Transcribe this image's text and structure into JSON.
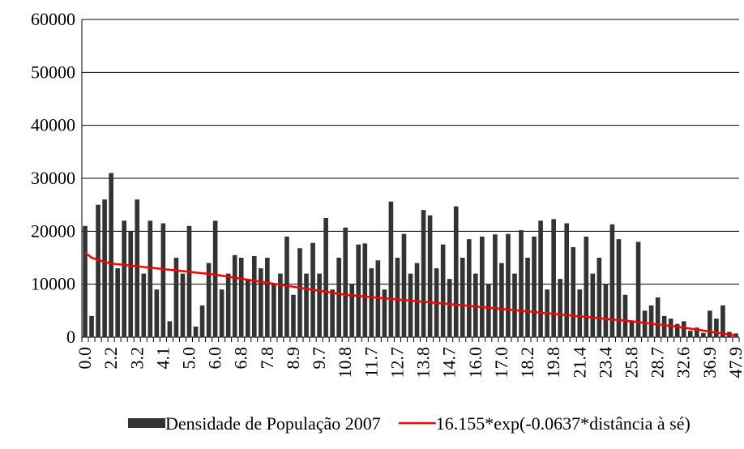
{
  "chart_data": {
    "type": "bar",
    "categories": [
      "0.0",
      null,
      null,
      null,
      "2.2",
      null,
      null,
      null,
      "3.2",
      null,
      null,
      null,
      "4.1",
      null,
      null,
      null,
      "5.0",
      null,
      null,
      null,
      "6.0",
      null,
      null,
      null,
      "6.8",
      null,
      null,
      null,
      "7.8",
      null,
      null,
      null,
      "8.9",
      null,
      null,
      null,
      "9.7",
      null,
      null,
      null,
      "10.8",
      null,
      null,
      null,
      "11.7",
      null,
      null,
      null,
      "12.7",
      null,
      null,
      null,
      "13.8",
      null,
      null,
      null,
      "14.7",
      null,
      null,
      null,
      "16.0",
      null,
      null,
      null,
      "17.0",
      null,
      null,
      null,
      "18.2",
      null,
      null,
      null,
      "19.8",
      null,
      null,
      null,
      "21.4",
      null,
      null,
      null,
      "23.4",
      null,
      null,
      null,
      "25.8",
      null,
      null,
      null,
      "28.7",
      null,
      null,
      null,
      "32.6",
      null,
      null,
      null,
      "36.9",
      null,
      null,
      null,
      "47.9"
    ],
    "series": [
      {
        "name": "Densidade de População 2007",
        "type": "bar",
        "color": "#333333",
        "values": [
          21000,
          4000,
          25000,
          26000,
          31000,
          13000,
          22000,
          20000,
          26000,
          12000,
          22000,
          9000,
          21500,
          3000,
          15000,
          12000,
          21000,
          2000,
          6000,
          14000,
          22000,
          9000,
          12000,
          15500,
          15000,
          11000,
          15300,
          13000,
          15000,
          10000,
          12000,
          19000,
          8000,
          16800,
          12000,
          17800,
          12000,
          22500,
          9000,
          15000,
          20700,
          10000,
          17500,
          17700,
          13000,
          14500,
          9000,
          25600,
          15000,
          19500,
          12000,
          14000,
          24000,
          23000,
          13000,
          17500,
          11000,
          24700,
          15000,
          18500,
          12000,
          19000,
          10000,
          19400,
          14000,
          19500,
          12000,
          20200,
          15000,
          19000,
          22000,
          9000,
          22300,
          11000,
          21500,
          17000,
          9000,
          19000,
          12000,
          15000,
          10000,
          21300,
          18500,
          8000,
          3000,
          18000,
          5000,
          6000,
          7500,
          4000,
          3500,
          2500,
          3000,
          1200,
          1800,
          800,
          5000,
          3500,
          6000,
          1000,
          700
        ]
      },
      {
        "name": "16.155*exp(-0.0637*distância à sé)",
        "type": "line",
        "color": "#ff0000",
        "values": [
          16000,
          15000,
          14600,
          14200,
          13900,
          13770,
          13640,
          13510,
          13380,
          13250,
          13120,
          12990,
          12860,
          12730,
          12600,
          12470,
          12340,
          12210,
          12080,
          11950,
          11800,
          11610,
          11420,
          11230,
          11040,
          10850,
          10660,
          10470,
          10280,
          10090,
          9900,
          9710,
          9520,
          9330,
          9140,
          8950,
          8760,
          8570,
          8380,
          8190,
          8000,
          7890,
          7780,
          7670,
          7560,
          7450,
          7340,
          7230,
          7120,
          7010,
          6900,
          6790,
          6680,
          6570,
          6460,
          6350,
          6240,
          6130,
          6020,
          5910,
          5800,
          5680,
          5570,
          5450,
          5330,
          5220,
          5100,
          4980,
          4870,
          4750,
          4630,
          4520,
          4400,
          4280,
          4170,
          4050,
          3930,
          3820,
          3700,
          3580,
          3470,
          3350,
          3230,
          3120,
          3000,
          2850,
          2700,
          2550,
          2400,
          2250,
          2100,
          1950,
          1800,
          1610,
          1430,
          1240,
          1050,
          860,
          680,
          490,
          300
        ]
      }
    ],
    "ylim": [
      0,
      60000
    ],
    "yticks": [
      0,
      10000,
      20000,
      30000,
      40000,
      50000,
      60000
    ],
    "grid": true,
    "legend": "bottom"
  }
}
